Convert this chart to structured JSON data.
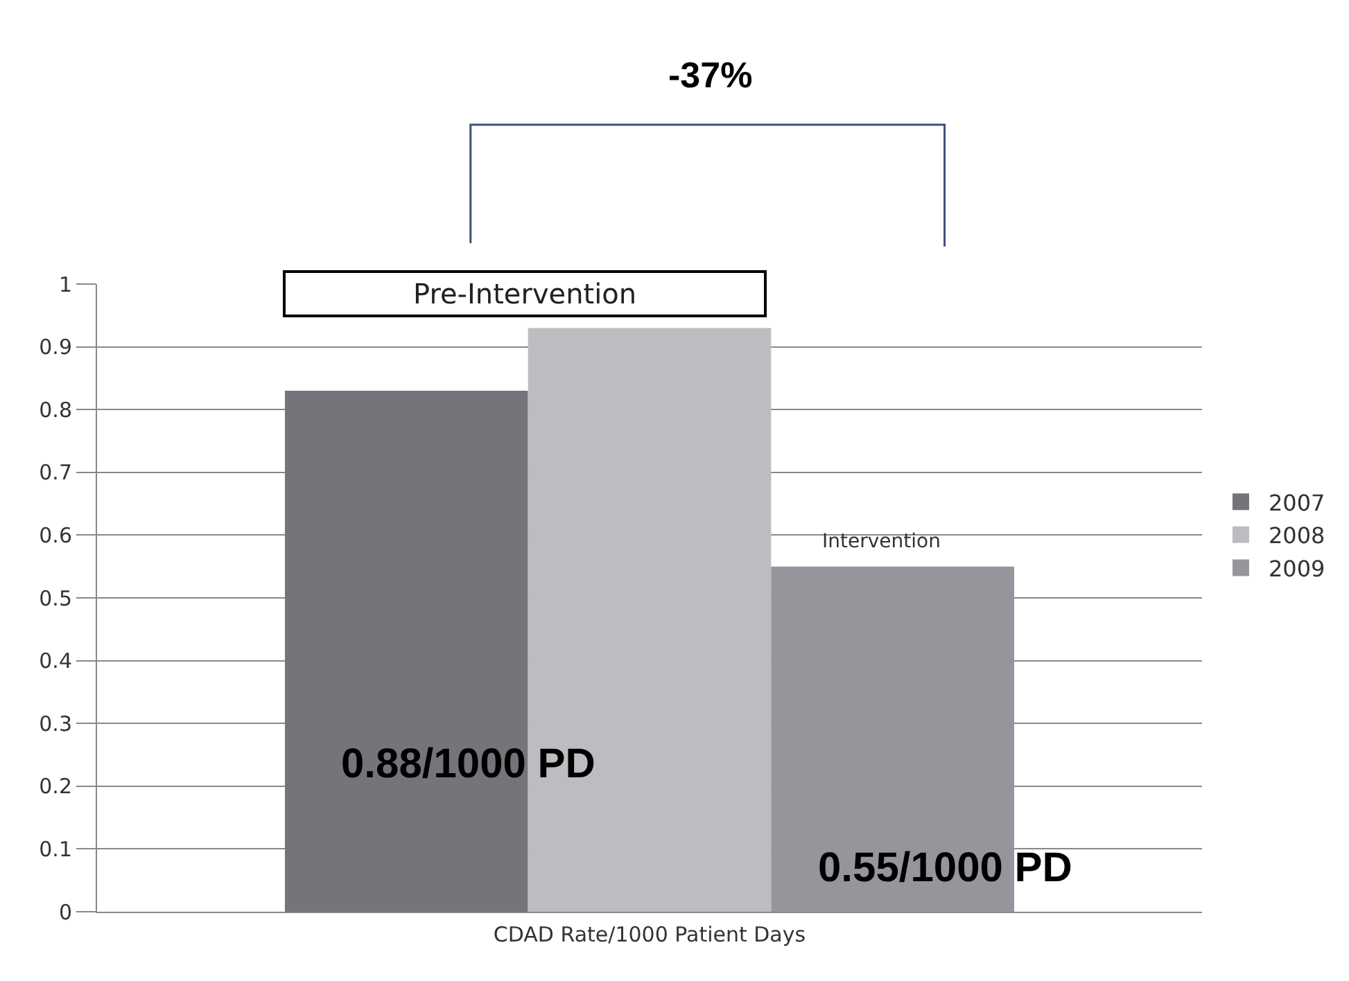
{
  "chart_data": {
    "type": "bar",
    "xlabel": "CDAD Rate/1000 Patient Days",
    "categories": [
      null
    ],
    "series": [
      {
        "name": "2007",
        "color": "#75747a",
        "values": [
          0.83
        ]
      },
      {
        "name": "2008",
        "color": "#bdbcc1",
        "values": [
          0.93
        ]
      },
      {
        "name": "2009",
        "color": "#96959c",
        "values": [
          0.55
        ]
      }
    ],
    "ylim": [
      0,
      1
    ],
    "yticks": [
      0,
      0.1,
      0.2,
      0.3,
      0.4,
      0.5,
      0.6,
      0.7,
      0.8,
      0.9,
      1
    ],
    "grid": "y",
    "legend": "right",
    "annotations": [
      "-37%",
      "Pre-Intervention",
      "Intervention",
      "0.88/1000 PD",
      "0.55/1000 PD"
    ]
  }
}
